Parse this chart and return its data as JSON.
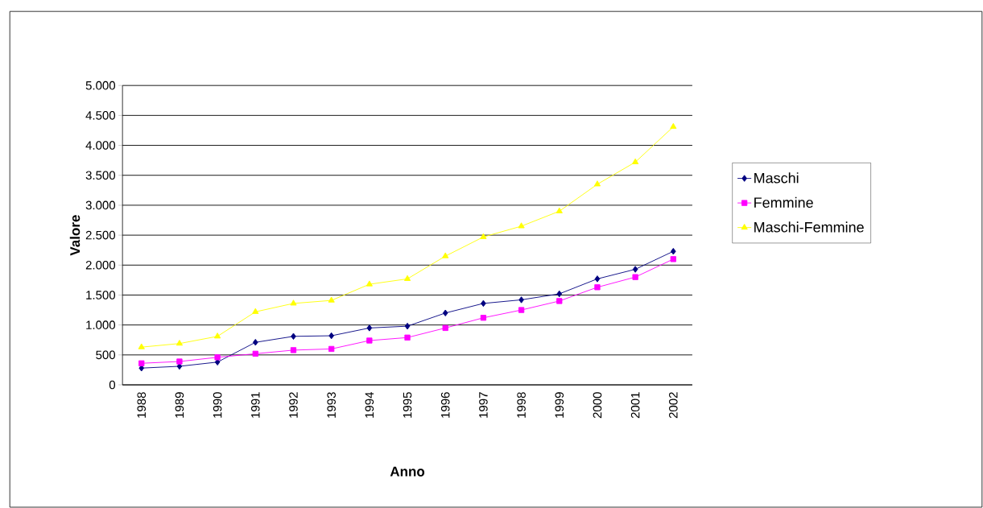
{
  "chart_data": {
    "type": "line",
    "xlabel": "Anno",
    "ylabel": "Valore",
    "categories": [
      "1988",
      "1989",
      "1990",
      "1991",
      "1992",
      "1993",
      "1994",
      "1995",
      "1996",
      "1997",
      "1998",
      "1999",
      "2000",
      "2001",
      "2002"
    ],
    "series": [
      {
        "name": "Maschi",
        "color": "#000080",
        "marker": "diamond",
        "values": [
          280,
          310,
          380,
          710,
          810,
          820,
          950,
          980,
          1200,
          1360,
          1420,
          1520,
          1770,
          1930,
          2230
        ]
      },
      {
        "name": "Femmine",
        "color": "#ff00ff",
        "marker": "square",
        "values": [
          360,
          390,
          460,
          520,
          580,
          600,
          740,
          790,
          950,
          1120,
          1250,
          1400,
          1630,
          1800,
          2100
        ]
      },
      {
        "name": "Maschi-Femmine",
        "color": "#ffff00",
        "marker": "triangle",
        "values": [
          630,
          690,
          810,
          1220,
          1360,
          1410,
          1680,
          1770,
          2150,
          2470,
          2650,
          2900,
          3350,
          3720,
          4310
        ]
      }
    ],
    "ylim": [
      0,
      5000
    ],
    "yticks": [
      {
        "value": 0,
        "label": "0"
      },
      {
        "value": 500,
        "label": "500"
      },
      {
        "value": 1000,
        "label": "1.000"
      },
      {
        "value": 1500,
        "label": "1.500"
      },
      {
        "value": 2000,
        "label": "2.000"
      },
      {
        "value": 2500,
        "label": "2.500"
      },
      {
        "value": 3000,
        "label": "3.000"
      },
      {
        "value": 3500,
        "label": "3.500"
      },
      {
        "value": 4000,
        "label": "4.000"
      },
      {
        "value": 4500,
        "label": "4.500"
      },
      {
        "value": 5000,
        "label": "5.000"
      }
    ],
    "grid": "y",
    "legend": "right",
    "line_style": "solid"
  }
}
